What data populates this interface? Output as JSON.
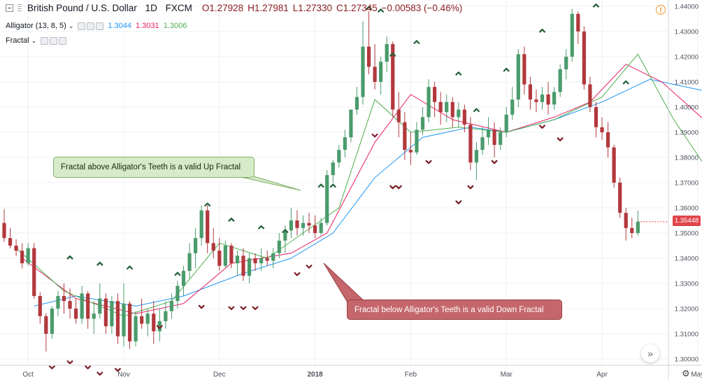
{
  "header": {
    "symbol": "British Pound / U.S. Dollar",
    "interval": "1D",
    "exchange": "FXCM",
    "open": "O1.27928",
    "high": "H1.27981",
    "low": "L1.27330",
    "close": "C1.27345",
    "change": "−0.00583 (−0.46%)"
  },
  "indicators": {
    "alligator": {
      "label": "Alligator (13, 8, 5)",
      "jaw": "1.3044",
      "teeth": "1.3031",
      "lips": "1.3006",
      "jaw_color": "#2196f3",
      "teeth_color": "#e91e63",
      "lips_color": "#4caf50"
    },
    "fractal": {
      "label": "Fractal"
    }
  },
  "annotations": {
    "up": "Fractal above Alligator's Teeth is a valid Up Fractal",
    "down": "Fractal below Alligator's Teeth is a valid Down Fractal"
  },
  "last_price": "1.35448",
  "icons": {
    "alert": "!",
    "scroll": "»",
    "settings": "⚙"
  },
  "colors": {
    "up_candle": "#4a9b6b",
    "down_candle": "#b2383d",
    "price_tag": "#e0464a"
  },
  "chart_data": {
    "type": "candlestick",
    "y_ticks": [
      "1.44000",
      "1.43000",
      "1.42000",
      "1.41000",
      "1.40000",
      "1.39000",
      "1.38000",
      "1.37000",
      "1.36000",
      "1.35000",
      "1.34000",
      "1.33000",
      "1.32000",
      "1.31000",
      "1.30000"
    ],
    "ylim": [
      1.2975,
      1.4425
    ],
    "x_ticks": [
      "Oct",
      "Nov",
      "Dec",
      "2018",
      "Feb",
      "Mar",
      "Apr",
      "May"
    ],
    "x_tick_bar_index": [
      4,
      20,
      36,
      52,
      68,
      84,
      100,
      116
    ],
    "ohlc": [
      [
        1.354,
        1.3595,
        1.3465,
        1.348
      ],
      [
        1.348,
        1.352,
        1.344,
        1.345
      ],
      [
        1.345,
        1.3475,
        1.341,
        1.343
      ],
      [
        1.343,
        1.346,
        1.336,
        1.338
      ],
      [
        1.338,
        1.346,
        1.337,
        1.344
      ],
      [
        1.344,
        1.346,
        1.324,
        1.325
      ],
      [
        1.325,
        1.3265,
        1.314,
        1.317
      ],
      [
        1.317,
        1.318,
        1.303,
        1.31
      ],
      [
        1.31,
        1.321,
        1.308,
        1.32
      ],
      [
        1.32,
        1.327,
        1.317,
        1.325
      ],
      [
        1.325,
        1.33,
        1.318,
        1.323
      ],
      [
        1.323,
        1.328,
        1.316,
        1.32
      ],
      [
        1.32,
        1.324,
        1.314,
        1.316
      ],
      [
        1.316,
        1.329,
        1.314,
        1.326
      ],
      [
        1.326,
        1.327,
        1.312,
        1.316
      ],
      [
        1.316,
        1.323,
        1.31,
        1.318
      ],
      [
        1.318,
        1.33,
        1.316,
        1.324
      ],
      [
        1.324,
        1.326,
        1.31,
        1.313
      ],
      [
        1.313,
        1.325,
        1.31,
        1.323
      ],
      [
        1.323,
        1.326,
        1.306,
        1.309
      ],
      [
        1.309,
        1.33,
        1.305,
        1.322
      ],
      [
        1.322,
        1.323,
        1.304,
        1.307
      ],
      [
        1.307,
        1.319,
        1.305,
        1.317
      ],
      [
        1.317,
        1.324,
        1.312,
        1.314
      ],
      [
        1.314,
        1.32,
        1.309,
        1.318
      ],
      [
        1.318,
        1.323,
        1.306,
        1.311
      ],
      [
        1.311,
        1.32,
        1.307,
        1.315
      ],
      [
        1.315,
        1.323,
        1.312,
        1.319
      ],
      [
        1.319,
        1.326,
        1.316,
        1.323
      ],
      [
        1.323,
        1.331,
        1.32,
        1.329
      ],
      [
        1.329,
        1.337,
        1.325,
        1.335
      ],
      [
        1.335,
        1.346,
        1.332,
        1.342
      ],
      [
        1.342,
        1.352,
        1.336,
        1.348
      ],
      [
        1.348,
        1.361,
        1.345,
        1.359
      ],
      [
        1.359,
        1.361,
        1.342,
        1.346
      ],
      [
        1.346,
        1.352,
        1.34,
        1.343
      ],
      [
        1.343,
        1.348,
        1.335,
        1.337
      ],
      [
        1.337,
        1.347,
        1.336,
        1.345
      ],
      [
        1.345,
        1.346,
        1.336,
        1.338
      ],
      [
        1.338,
        1.343,
        1.333,
        1.341
      ],
      [
        1.341,
        1.344,
        1.331,
        1.333
      ],
      [
        1.333,
        1.342,
        1.33,
        1.34
      ],
      [
        1.34,
        1.342,
        1.335,
        1.338
      ],
      [
        1.338,
        1.344,
        1.335,
        1.34
      ],
      [
        1.34,
        1.343,
        1.337,
        1.339
      ],
      [
        1.339,
        1.344,
        1.336,
        1.342
      ],
      [
        1.342,
        1.35,
        1.34,
        1.347
      ],
      [
        1.347,
        1.353,
        1.342,
        1.351
      ],
      [
        1.351,
        1.36,
        1.348,
        1.355
      ],
      [
        1.355,
        1.359,
        1.349,
        1.352
      ],
      [
        1.352,
        1.357,
        1.349,
        1.354
      ],
      [
        1.354,
        1.358,
        1.35,
        1.353
      ],
      [
        1.353,
        1.357,
        1.348,
        1.35
      ],
      [
        1.35,
        1.356,
        1.349,
        1.354
      ],
      [
        1.354,
        1.375,
        1.353,
        1.373
      ],
      [
        1.373,
        1.379,
        1.37,
        1.378
      ],
      [
        1.378,
        1.385,
        1.376,
        1.383
      ],
      [
        1.383,
        1.391,
        1.38,
        1.388
      ],
      [
        1.388,
        1.399,
        1.386,
        1.399
      ],
      [
        1.399,
        1.408,
        1.397,
        1.404
      ],
      [
        1.404,
        1.434,
        1.401,
        1.424
      ],
      [
        1.424,
        1.438,
        1.413,
        1.416
      ],
      [
        1.416,
        1.425,
        1.407,
        1.41
      ],
      [
        1.41,
        1.42,
        1.405,
        1.418
      ],
      [
        1.418,
        1.428,
        1.414,
        1.425
      ],
      [
        1.425,
        1.426,
        1.396,
        1.399
      ],
      [
        1.399,
        1.406,
        1.388,
        1.394
      ],
      [
        1.394,
        1.398,
        1.379,
        1.383
      ],
      [
        1.383,
        1.39,
        1.377,
        1.382
      ],
      [
        1.382,
        1.394,
        1.381,
        1.391
      ],
      [
        1.391,
        1.4,
        1.389,
        1.396
      ],
      [
        1.396,
        1.411,
        1.394,
        1.408
      ],
      [
        1.408,
        1.41,
        1.396,
        1.402
      ],
      [
        1.402,
        1.406,
        1.393,
        1.398
      ],
      [
        1.398,
        1.405,
        1.394,
        1.402
      ],
      [
        1.402,
        1.404,
        1.392,
        1.396
      ],
      [
        1.396,
        1.402,
        1.392,
        1.399
      ],
      [
        1.399,
        1.401,
        1.39,
        1.393
      ],
      [
        1.393,
        1.396,
        1.375,
        1.378
      ],
      [
        1.378,
        1.386,
        1.371,
        1.383
      ],
      [
        1.383,
        1.392,
        1.381,
        1.388
      ],
      [
        1.388,
        1.396,
        1.385,
        1.391
      ],
      [
        1.391,
        1.394,
        1.38,
        1.385
      ],
      [
        1.385,
        1.392,
        1.383,
        1.39
      ],
      [
        1.39,
        1.4,
        1.388,
        1.397
      ],
      [
        1.397,
        1.408,
        1.395,
        1.403
      ],
      [
        1.403,
        1.423,
        1.4,
        1.421
      ],
      [
        1.421,
        1.424,
        1.405,
        1.409
      ],
      [
        1.409,
        1.412,
        1.399,
        1.403
      ],
      [
        1.403,
        1.407,
        1.398,
        1.402
      ],
      [
        1.402,
        1.408,
        1.399,
        1.405
      ],
      [
        1.405,
        1.41,
        1.397,
        1.401
      ],
      [
        1.401,
        1.408,
        1.399,
        1.406
      ],
      [
        1.406,
        1.417,
        1.404,
        1.415
      ],
      [
        1.415,
        1.423,
        1.411,
        1.42
      ],
      [
        1.42,
        1.439,
        1.418,
        1.437
      ],
      [
        1.437,
        1.438,
        1.425,
        1.43
      ],
      [
        1.43,
        1.432,
        1.407,
        1.409
      ],
      [
        1.409,
        1.412,
        1.398,
        1.4
      ],
      [
        1.4,
        1.402,
        1.388,
        1.392
      ],
      [
        1.392,
        1.396,
        1.387,
        1.39
      ],
      [
        1.39,
        1.394,
        1.38,
        1.384
      ],
      [
        1.384,
        1.385,
        1.368,
        1.37
      ],
      [
        1.37,
        1.372,
        1.356,
        1.358
      ],
      [
        1.358,
        1.36,
        1.347,
        1.352
      ],
      [
        1.352,
        1.356,
        1.348,
        1.35
      ],
      [
        1.35,
        1.359,
        1.349,
        1.3545
      ]
    ],
    "alligator_jaw": [
      [
        5,
        1.321
      ],
      [
        12,
        1.325
      ],
      [
        22,
        1.321
      ],
      [
        30,
        1.325
      ],
      [
        40,
        1.334
      ],
      [
        48,
        1.34
      ],
      [
        55,
        1.35
      ],
      [
        62,
        1.372
      ],
      [
        70,
        1.388
      ],
      [
        78,
        1.392
      ],
      [
        84,
        1.39
      ],
      [
        92,
        1.395
      ],
      [
        100,
        1.402
      ],
      [
        108,
        1.411
      ],
      [
        114,
        1.408
      ],
      [
        118,
        1.406
      ]
    ],
    "alligator_teeth": [
      [
        3,
        1.34
      ],
      [
        12,
        1.324
      ],
      [
        22,
        1.318
      ],
      [
        30,
        1.322
      ],
      [
        38,
        1.338
      ],
      [
        48,
        1.342
      ],
      [
        54,
        1.35
      ],
      [
        62,
        1.386
      ],
      [
        68,
        1.405
      ],
      [
        75,
        1.395
      ],
      [
        84,
        1.39
      ],
      [
        92,
        1.396
      ],
      [
        98,
        1.402
      ],
      [
        104,
        1.417
      ],
      [
        110,
        1.41
      ],
      [
        118,
        1.393
      ]
    ],
    "alligator_lips": [
      [
        2,
        1.344
      ],
      [
        10,
        1.327
      ],
      [
        20,
        1.317
      ],
      [
        28,
        1.323
      ],
      [
        36,
        1.346
      ],
      [
        44,
        1.34
      ],
      [
        50,
        1.35
      ],
      [
        56,
        1.36
      ],
      [
        62,
        1.403
      ],
      [
        68,
        1.39
      ],
      [
        76,
        1.392
      ],
      [
        84,
        1.39
      ],
      [
        92,
        1.395
      ],
      [
        100,
        1.404
      ],
      [
        106,
        1.421
      ],
      [
        112,
        1.395
      ],
      [
        118,
        1.374
      ]
    ],
    "fractals_up": [
      [
        11,
        1.3405
      ],
      [
        16,
        1.338
      ],
      [
        21,
        1.3365
      ],
      [
        29,
        1.334
      ],
      [
        34,
        1.3615
      ],
      [
        38,
        1.3555
      ],
      [
        43,
        1.3525
      ],
      [
        47,
        1.351
      ],
      [
        53,
        1.369
      ],
      [
        55,
        1.369
      ],
      [
        61,
        1.4395
      ],
      [
        63,
        1.4385
      ],
      [
        65,
        1.421
      ],
      [
        69,
        1.426
      ],
      [
        76,
        1.4135
      ],
      [
        79,
        1.399
      ],
      [
        84,
        1.415
      ],
      [
        90,
        1.4305
      ],
      [
        99,
        1.4405
      ],
      [
        104,
        1.41
      ]
    ],
    "fractals_down": [
      [
        8,
        1.2965
      ],
      [
        11,
        1.2985
      ],
      [
        14,
        1.2965
      ],
      [
        16,
        1.294
      ],
      [
        19,
        1.2955
      ],
      [
        26,
        1.3125
      ],
      [
        33,
        1.3205
      ],
      [
        38,
        1.32
      ],
      [
        40,
        1.32
      ],
      [
        42,
        1.32
      ],
      [
        49,
        1.3335
      ],
      [
        51,
        1.3365
      ],
      [
        62,
        1.3885
      ],
      [
        65,
        1.368
      ],
      [
        66,
        1.368
      ],
      [
        71,
        1.378
      ],
      [
        76,
        1.362
      ],
      [
        78,
        1.368
      ],
      [
        82,
        1.378
      ],
      [
        90,
        1.392
      ],
      [
        93,
        1.387
      ]
    ]
  }
}
